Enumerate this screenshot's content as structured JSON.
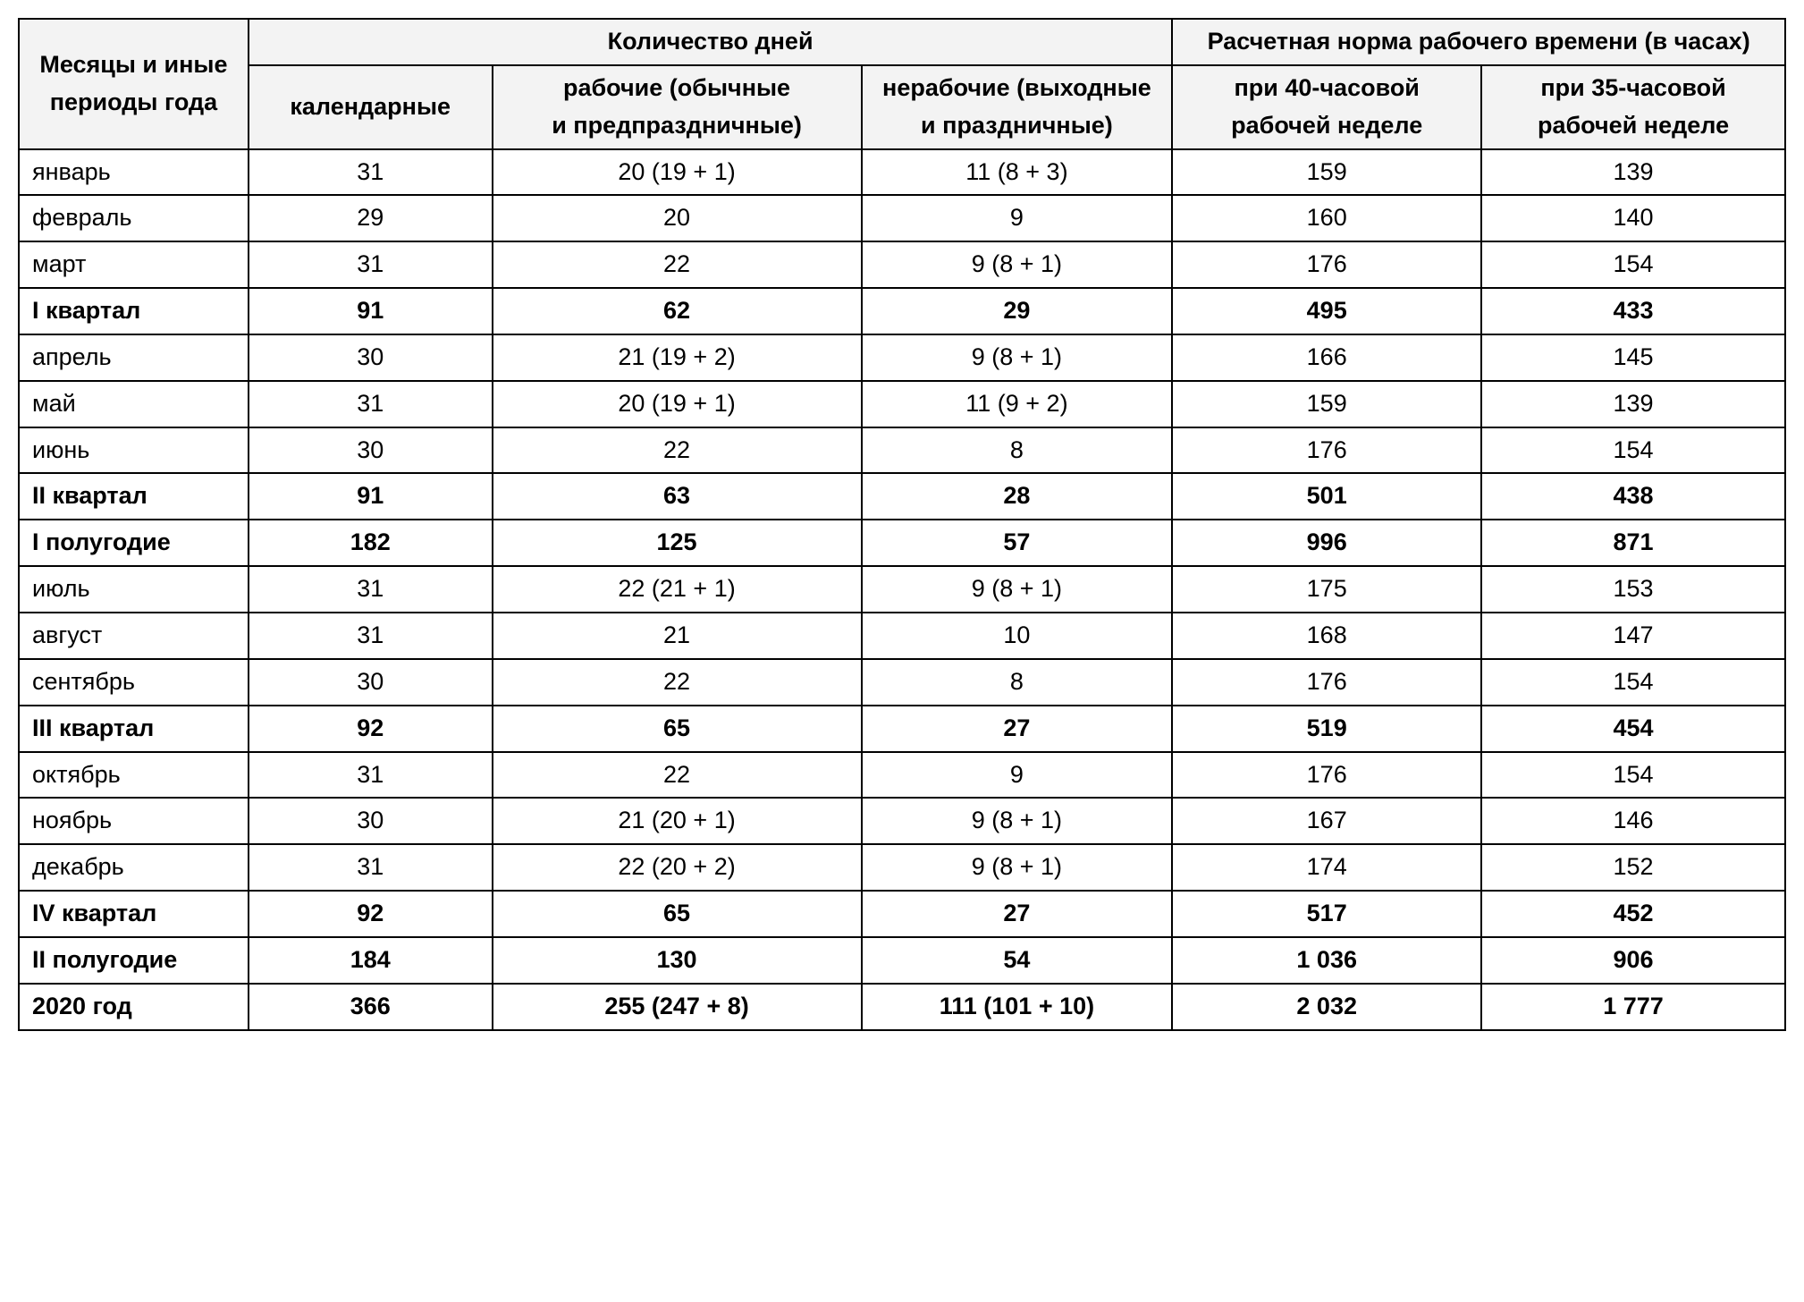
{
  "table": {
    "header": {
      "periods": "Месяцы и иные периоды года",
      "days_group": "Количество дней",
      "hours_group": "Расчетная норма рабочего времени (в часах)",
      "calendar": "календарные",
      "working": "рабочие (обычные и предпраздничные)",
      "nonworking": "нерабочие (выходные и праздничные)",
      "hours40": "при 40-часовой рабочей неделе",
      "hours35": "при 35-часовой рабочей неделе"
    },
    "rows": [
      {
        "bold": false,
        "period": "январь",
        "calendar": "31",
        "working": "20 (19 + 1)",
        "nonworking": "11 (8 + 3)",
        "h40": "159",
        "h35": "139"
      },
      {
        "bold": false,
        "period": "февраль",
        "calendar": "29",
        "working": "20",
        "nonworking": "9",
        "h40": "160",
        "h35": "140"
      },
      {
        "bold": false,
        "period": "март",
        "calendar": "31",
        "working": "22",
        "nonworking": "9 (8 + 1)",
        "h40": "176",
        "h35": "154"
      },
      {
        "bold": true,
        "period": "I квартал",
        "calendar": "91",
        "working": "62",
        "nonworking": "29",
        "h40": "495",
        "h35": "433"
      },
      {
        "bold": false,
        "period": "апрель",
        "calendar": "30",
        "working": "21 (19 + 2)",
        "nonworking": "9 (8 + 1)",
        "h40": "166",
        "h35": "145"
      },
      {
        "bold": false,
        "period": "май",
        "calendar": "31",
        "working": "20 (19 + 1)",
        "nonworking": "11 (9 + 2)",
        "h40": "159",
        "h35": "139"
      },
      {
        "bold": false,
        "period": "июнь",
        "calendar": "30",
        "working": "22",
        "nonworking": "8",
        "h40": "176",
        "h35": "154"
      },
      {
        "bold": true,
        "period": "II квартал",
        "calendar": "91",
        "working": "63",
        "nonworking": "28",
        "h40": "501",
        "h35": "438"
      },
      {
        "bold": true,
        "period": "I полугодие",
        "calendar": "182",
        "working": "125",
        "nonworking": "57",
        "h40": "996",
        "h35": "871"
      },
      {
        "bold": false,
        "period": "июль",
        "calendar": "31",
        "working": "22 (21 + 1)",
        "nonworking": "9 (8 + 1)",
        "h40": "175",
        "h35": "153"
      },
      {
        "bold": false,
        "period": "август",
        "calendar": "31",
        "working": "21",
        "nonworking": "10",
        "h40": "168",
        "h35": "147"
      },
      {
        "bold": false,
        "period": "сентябрь",
        "calendar": "30",
        "working": "22",
        "nonworking": "8",
        "h40": "176",
        "h35": "154"
      },
      {
        "bold": true,
        "period": "III квартал",
        "calendar": "92",
        "working": "65",
        "nonworking": "27",
        "h40": "519",
        "h35": "454"
      },
      {
        "bold": false,
        "period": "октябрь",
        "calendar": "31",
        "working": "22",
        "nonworking": "9",
        "h40": "176",
        "h35": "154"
      },
      {
        "bold": false,
        "period": "ноябрь",
        "calendar": "30",
        "working": "21 (20 + 1)",
        "nonworking": "9 (8 + 1)",
        "h40": "167",
        "h35": "146"
      },
      {
        "bold": false,
        "period": "декабрь",
        "calendar": "31",
        "working": "22 (20 + 2)",
        "nonworking": "9 (8 + 1)",
        "h40": "174",
        "h35": "152"
      },
      {
        "bold": true,
        "period": "IV квартал",
        "calendar": "92",
        "working": "65",
        "nonworking": "27",
        "h40": "517",
        "h35": "452"
      },
      {
        "bold": true,
        "period": "II полугодие",
        "calendar": "184",
        "working": "130",
        "nonworking": "54",
        "h40": "1 036",
        "h35": "906"
      },
      {
        "bold": true,
        "period": "2020 год",
        "calendar": "366",
        "working": "255 (247 + 8)",
        "nonworking": "111 (101 + 10)",
        "h40": "2 032",
        "h35": "1 777"
      }
    ],
    "style": {
      "border_color": "#000000",
      "header_bg": "#f3f3f3",
      "background": "#ffffff",
      "font_size_pt": 20,
      "font_family": "Helvetica Neue, Helvetica, Arial, sans-serif",
      "col_widths_pct": [
        13.0,
        13.8,
        20.9,
        17.6,
        17.5,
        17.2
      ]
    }
  }
}
